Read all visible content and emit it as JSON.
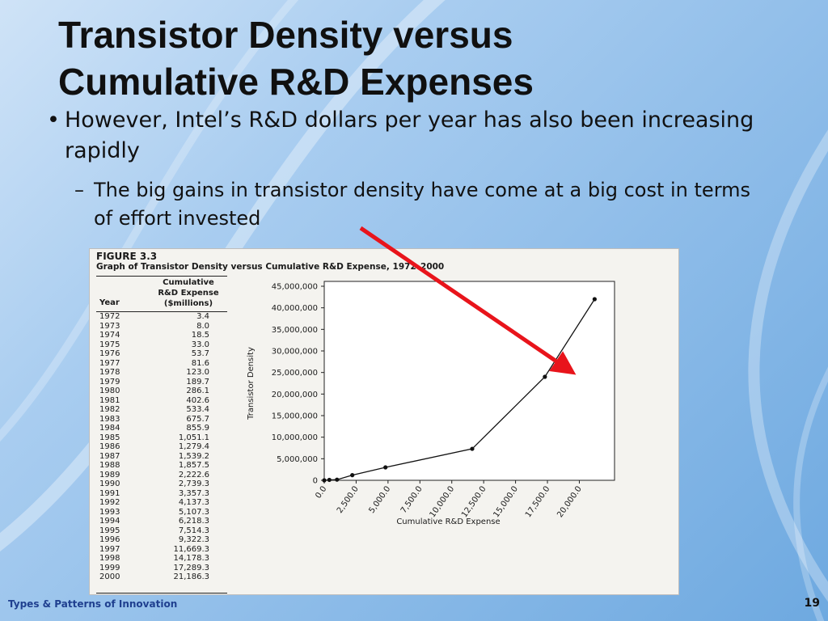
{
  "slide": {
    "title_line1": "Transistor Density versus",
    "title_line2": "Cumulative R&D Expenses",
    "bullet1_marker": "•",
    "bullet1_text": "However, Intel’s R&D dollars per year has also been increasing rapidly",
    "bullet2_marker": "–",
    "bullet2_text": "The big gains in transistor density have come at a big cost in terms of effort invested",
    "footer_left": "Types & Patterns of Innovation",
    "page_number": "19"
  },
  "colors": {
    "arrow": "#e8141b",
    "footer_text": "#1f3f8f"
  },
  "figure": {
    "number": "FIGURE 3.3",
    "caption": "Graph of Transistor Density versus Cumulative R&D Expense, 1972–2000",
    "table_header_cum_line1": "Cumulative",
    "table_header_cum_line2": "R&D Expense",
    "table_header_cum_line3": "($millions)",
    "table_header_year": "Year",
    "rows": [
      {
        "year": "1972",
        "value": "3.4"
      },
      {
        "year": "1973",
        "value": "8.0"
      },
      {
        "year": "1974",
        "value": "18.5"
      },
      {
        "year": "1975",
        "value": "33.0"
      },
      {
        "year": "1976",
        "value": "53.7"
      },
      {
        "year": "1977",
        "value": "81.6"
      },
      {
        "year": "1978",
        "value": "123.0"
      },
      {
        "year": "1979",
        "value": "189.7"
      },
      {
        "year": "1980",
        "value": "286.1"
      },
      {
        "year": "1981",
        "value": "402.6"
      },
      {
        "year": "1982",
        "value": "533.4"
      },
      {
        "year": "1983",
        "value": "675.7"
      },
      {
        "year": "1984",
        "value": "855.9"
      },
      {
        "year": "1985",
        "value": "1,051.1"
      },
      {
        "year": "1986",
        "value": "1,279.4"
      },
      {
        "year": "1987",
        "value": "1,539.2"
      },
      {
        "year": "1988",
        "value": "1,857.5"
      },
      {
        "year": "1989",
        "value": "2,222.6"
      },
      {
        "year": "1990",
        "value": "2,739.3"
      },
      {
        "year": "1991",
        "value": "3,357.3"
      },
      {
        "year": "1992",
        "value": "4,137.3"
      },
      {
        "year": "1993",
        "value": "5,107.3"
      },
      {
        "year": "1994",
        "value": "6,218.3"
      },
      {
        "year": "1995",
        "value": "7,514.3"
      },
      {
        "year": "1996",
        "value": "9,322.3"
      },
      {
        "year": "1997",
        "value": "11,669.3"
      },
      {
        "year": "1998",
        "value": "14,178.3"
      },
      {
        "year": "1999",
        "value": "17,289.3"
      },
      {
        "year": "2000",
        "value": "21,186.3"
      }
    ]
  },
  "chart_data": {
    "type": "line",
    "title": "Graph of Transistor Density versus Cumulative R&D Expense, 1972–2000",
    "xlabel": "Cumulative R&D Expense",
    "ylabel": "Transistor Density",
    "xlim": [
      0,
      22000
    ],
    "ylim": [
      0,
      45000000
    ],
    "x_ticks": [
      0,
      2500,
      5000,
      7500,
      10000,
      12500,
      15000,
      17500,
      20000
    ],
    "x_tick_labels": [
      "0.0",
      "2,500.0",
      "5,000.0",
      "7,500.0",
      "10,000.0",
      "12,500.0",
      "15,000.0",
      "17,500.0",
      "20,000.0"
    ],
    "y_ticks": [
      0,
      5000000,
      10000000,
      15000000,
      20000000,
      25000000,
      30000000,
      35000000,
      40000000,
      45000000
    ],
    "y_tick_labels": [
      "0",
      "5,000,000",
      "10,000,000",
      "15,000,000",
      "20,000,000",
      "25,000,000",
      "30,000,000",
      "35,000,000",
      "40,000,000",
      "45,000,000"
    ],
    "grid": false,
    "series": [
      {
        "points": [
          {
            "x": 0,
            "y": 0
          },
          {
            "x": 400,
            "y": 100000
          },
          {
            "x": 1000,
            "y": 150000
          },
          {
            "x": 2200,
            "y": 1200000
          },
          {
            "x": 4800,
            "y": 3000000
          },
          {
            "x": 11600,
            "y": 7300000
          },
          {
            "x": 17300,
            "y": 24000000
          },
          {
            "x": 21200,
            "y": 42000000
          }
        ]
      }
    ]
  }
}
